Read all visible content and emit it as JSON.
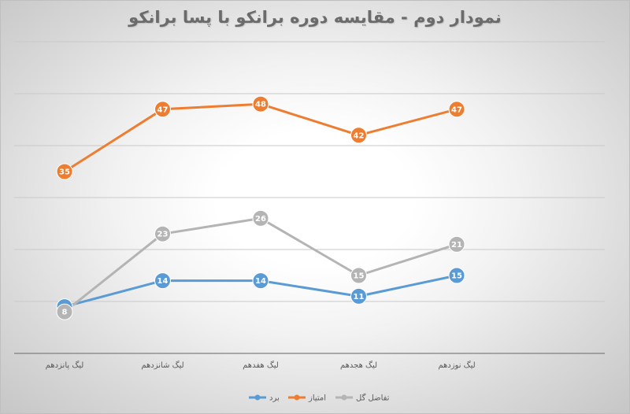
{
  "chart_data": {
    "type": "line",
    "title": "نمودار دوم - مقایسه دوره برانکو با پسا برانکو",
    "categories": [
      "لیگ پانزدهم",
      "لیگ شانزدهم",
      "لیگ هفدهم",
      "لیگ هجدهم",
      "لیگ نوزدهم"
    ],
    "series": [
      {
        "name": "برد",
        "values": [
          9,
          14,
          14,
          11,
          15
        ],
        "color": "#5b9bd5"
      },
      {
        "name": "امتیاز",
        "values": [
          35,
          47,
          48,
          42,
          47
        ],
        "color": "#ed7d31"
      },
      {
        "name": "تفاضل گل",
        "values": [
          8,
          23,
          26,
          15,
          21
        ],
        "color": "#b4b4b4"
      }
    ],
    "ylim": [
      0,
      60
    ],
    "grid": true,
    "legend_position": "bottom",
    "xlabel": "",
    "ylabel": ""
  }
}
